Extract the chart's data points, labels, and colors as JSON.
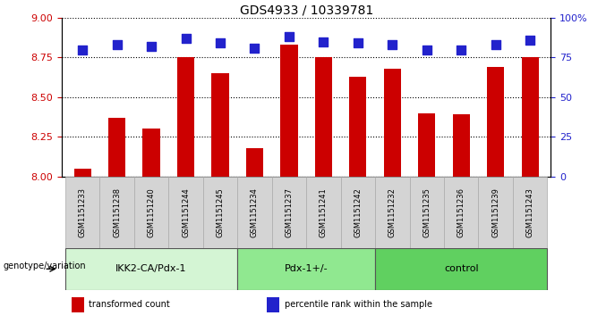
{
  "title": "GDS4933 / 10339781",
  "samples": [
    "GSM1151233",
    "GSM1151238",
    "GSM1151240",
    "GSM1151244",
    "GSM1151245",
    "GSM1151234",
    "GSM1151237",
    "GSM1151241",
    "GSM1151242",
    "GSM1151232",
    "GSM1151235",
    "GSM1151236",
    "GSM1151239",
    "GSM1151243"
  ],
  "transformed_counts": [
    8.05,
    8.37,
    8.3,
    8.75,
    8.65,
    8.18,
    8.83,
    8.75,
    8.63,
    8.68,
    8.4,
    8.39,
    8.69,
    8.75
  ],
  "percentile_ranks": [
    80,
    83,
    82,
    87,
    84,
    81,
    88,
    85,
    84,
    83,
    80,
    80,
    83,
    86
  ],
  "groups": [
    {
      "label": "IKK2-CA/Pdx-1",
      "start": 0,
      "end": 5,
      "color": "#d4f5d4"
    },
    {
      "label": "Pdx-1+/-",
      "start": 5,
      "end": 9,
      "color": "#90e890"
    },
    {
      "label": "control",
      "start": 9,
      "end": 14,
      "color": "#60d060"
    }
  ],
  "ylim_left": [
    8.0,
    9.0
  ],
  "ylim_right": [
    0,
    100
  ],
  "yticks_left": [
    8.0,
    8.25,
    8.5,
    8.75,
    9.0
  ],
  "yticks_right": [
    0,
    25,
    50,
    75,
    100
  ],
  "bar_color": "#cc0000",
  "dot_color": "#2222cc",
  "bar_width": 0.5,
  "dot_size": 45,
  "legend_items": [
    {
      "label": "transformed count",
      "color": "#cc0000"
    },
    {
      "label": "percentile rank within the sample",
      "color": "#2222cc"
    }
  ],
  "xlabel_group": "genotype/variation",
  "sample_box_color": "#d4d4d4",
  "sample_box_edge": "#aaaaaa"
}
